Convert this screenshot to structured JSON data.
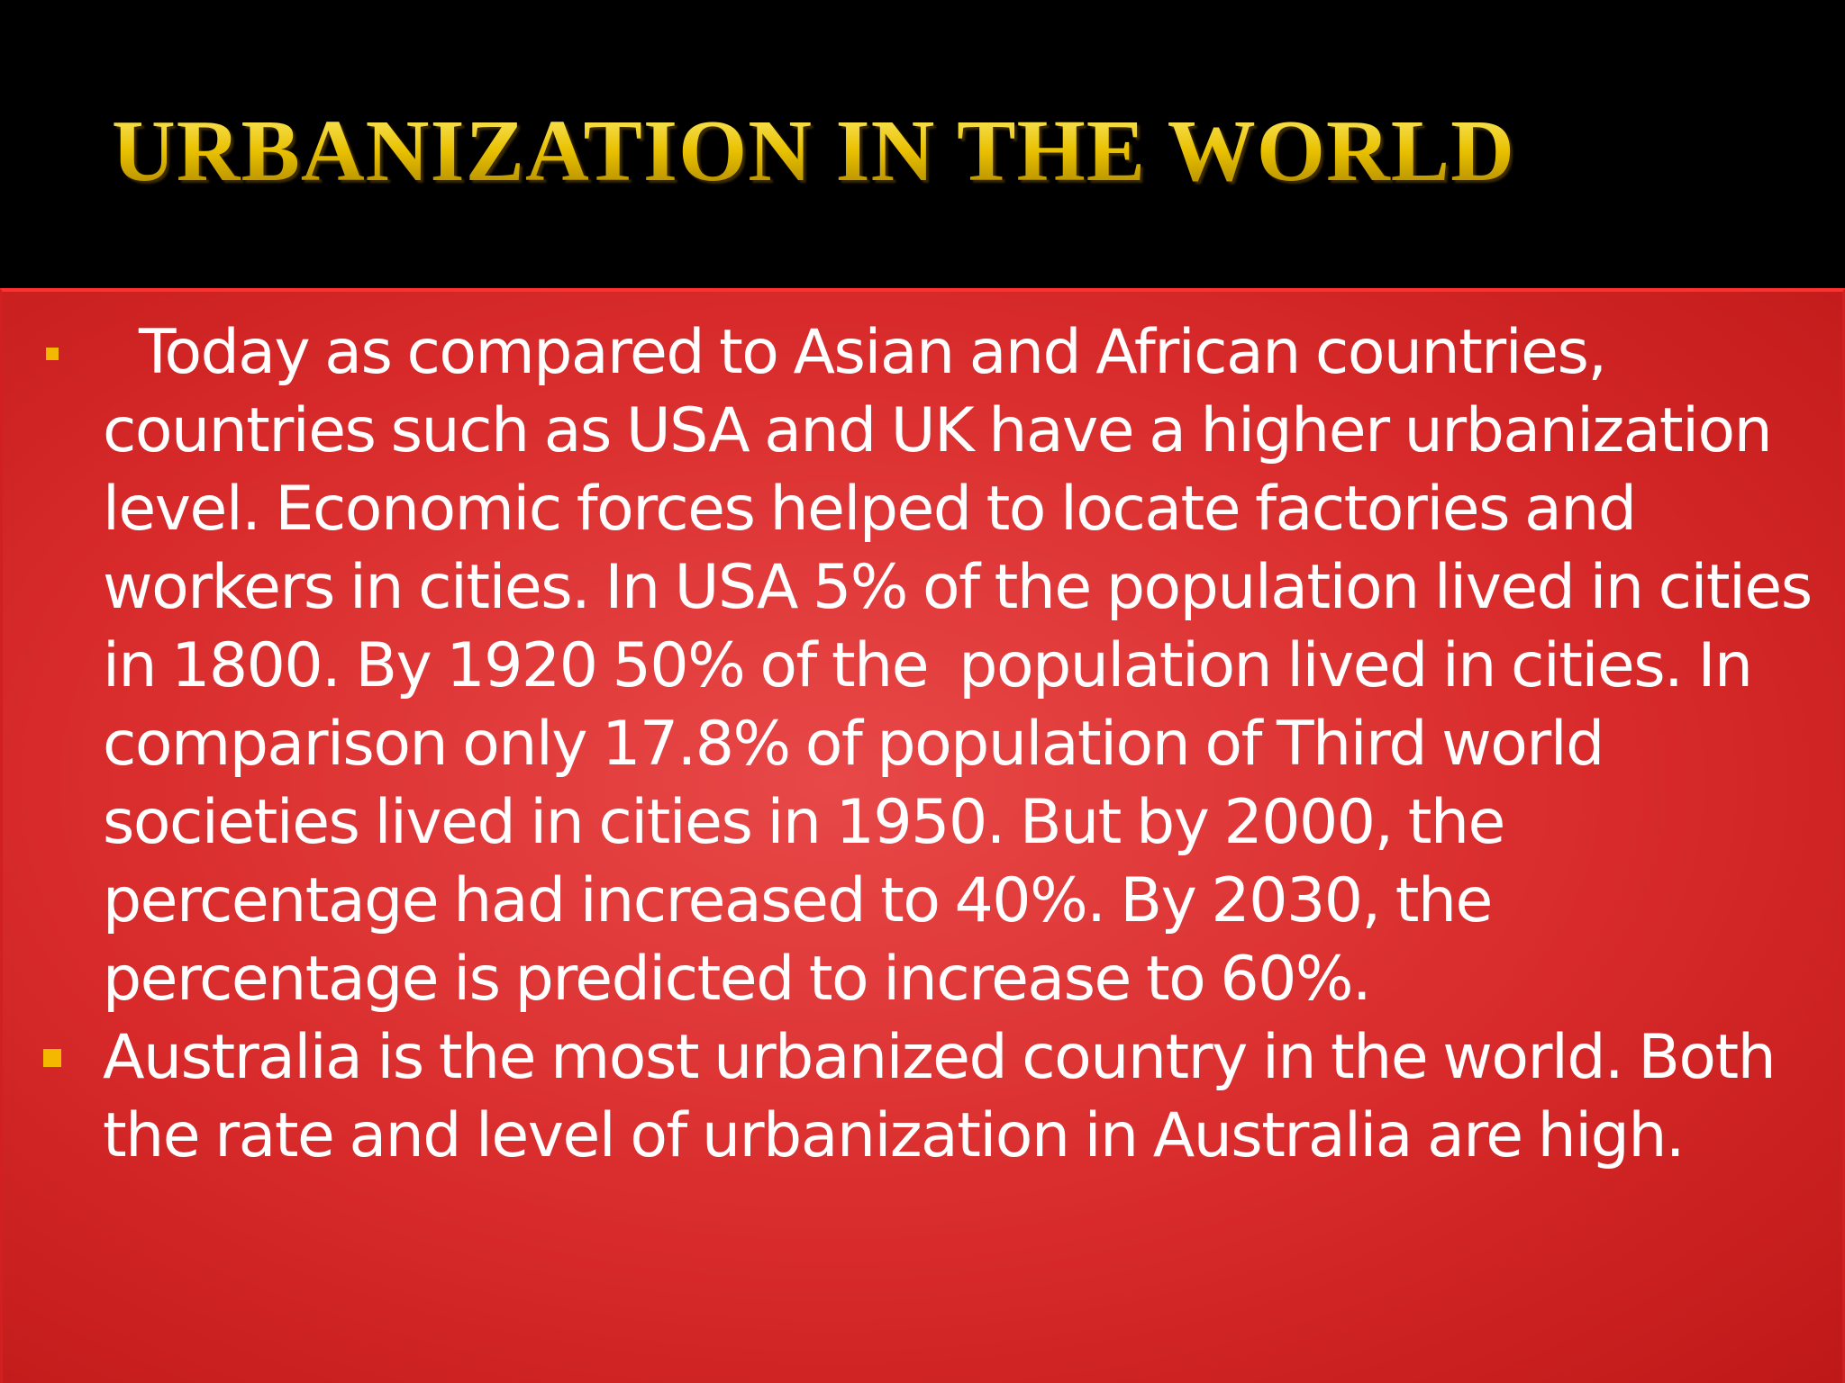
{
  "header": {
    "title": "URBANIZATION IN THE WORLD"
  },
  "bullets": [
    "Today as compared to Asian and African countries, countries such as USA and UK have a higher urbanization level. Economic forces helped to locate factories and workers in cities. In USA 5% of the population lived in cities in 1800. By 1920 50% of the  population lived in cities. In comparison only 17.8% of population of Third world societies lived in cities in 1950. But by 2000, the percentage had increased to 40%. By 2030, the percentage is predicted to increase to 60%.",
    "Australia is the most urbanized country in the world. Both the rate and level of urbanization in Australia are high."
  ]
}
